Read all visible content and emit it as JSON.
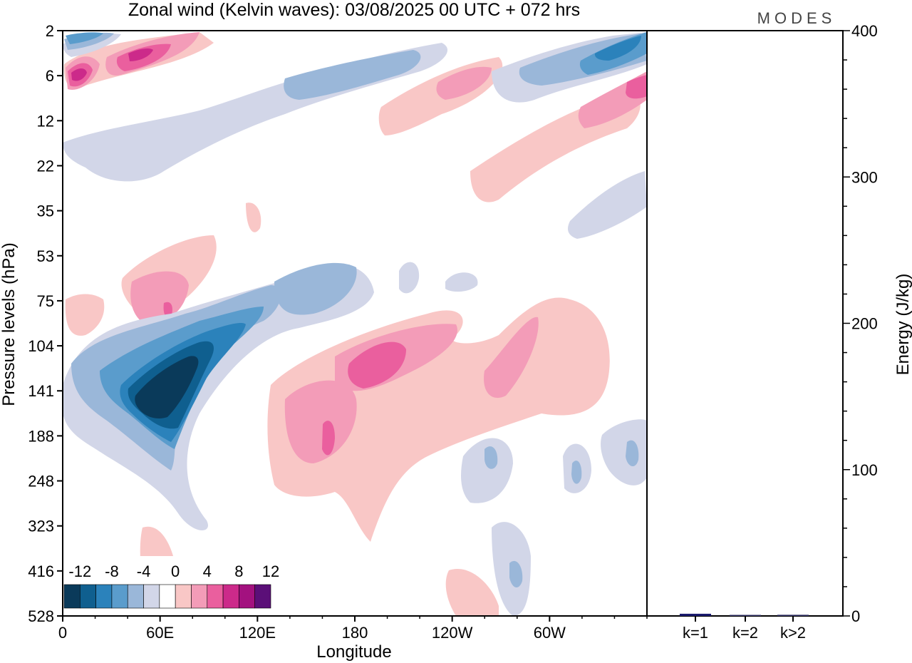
{
  "brand": "MODES",
  "chart_data": {
    "type": "heatmap",
    "title": "Zonal wind (Kelvin waves):  03/08/2025  00 UTC  + 072 hrs",
    "xlabel": "Longitude",
    "ylabel": "Pressure levels (hPa)",
    "x_ticks": [
      "0",
      "60E",
      "120E",
      "180",
      "120W",
      "60W"
    ],
    "x_tick_values": [
      0,
      60,
      120,
      180,
      240,
      300
    ],
    "x_range": [
      0,
      360
    ],
    "y_ticks": [
      "2",
      "6",
      "12",
      "22",
      "35",
      "53",
      "75",
      "104",
      "141",
      "188",
      "248",
      "323",
      "416",
      "528"
    ],
    "colorbar": {
      "labels": [
        "-12",
        "-8",
        "-4",
        "0",
        "4",
        "8",
        "12"
      ],
      "levels": [
        -14,
        -12,
        -10,
        -8,
        -6,
        -4,
        -2,
        2,
        4,
        6,
        8,
        10,
        12,
        14
      ],
      "colors": [
        "#0a3a5a",
        "#0f5f8f",
        "#2b82bb",
        "#5a9ccc",
        "#9ab7d9",
        "#d2d6e8",
        "#ffffff",
        "#f9c7c6",
        "#f39cb8",
        "#ea5f9e",
        "#cc2a8a",
        "#a3117f",
        "#5b0f78"
      ]
    },
    "fields": [
      {
        "lon": 70,
        "level": 141,
        "value": -14
      },
      {
        "lon": 15,
        "level": 6,
        "value": 8
      },
      {
        "lon": 45,
        "level": 4,
        "value": 7
      },
      {
        "lon": 190,
        "level": 125,
        "value": 7
      },
      {
        "lon": 160,
        "level": 188,
        "value": 6
      },
      {
        "lon": 60,
        "level": 90,
        "value": 6
      },
      {
        "lon": 290,
        "level": 4,
        "value": -6
      },
      {
        "lon": 345,
        "level": 9,
        "value": 6
      },
      {
        "lon": 115,
        "level": 80,
        "value": -5
      }
    ],
    "energy_panel": {
      "ylabel": "Energy (J/kg)",
      "ylim": [
        0,
        400
      ],
      "y_ticks": [
        0,
        100,
        200,
        300,
        400
      ],
      "categories": [
        "k=1",
        "k=2",
        "k>2"
      ],
      "values": [
        1.5,
        0.6,
        0.8
      ]
    }
  }
}
